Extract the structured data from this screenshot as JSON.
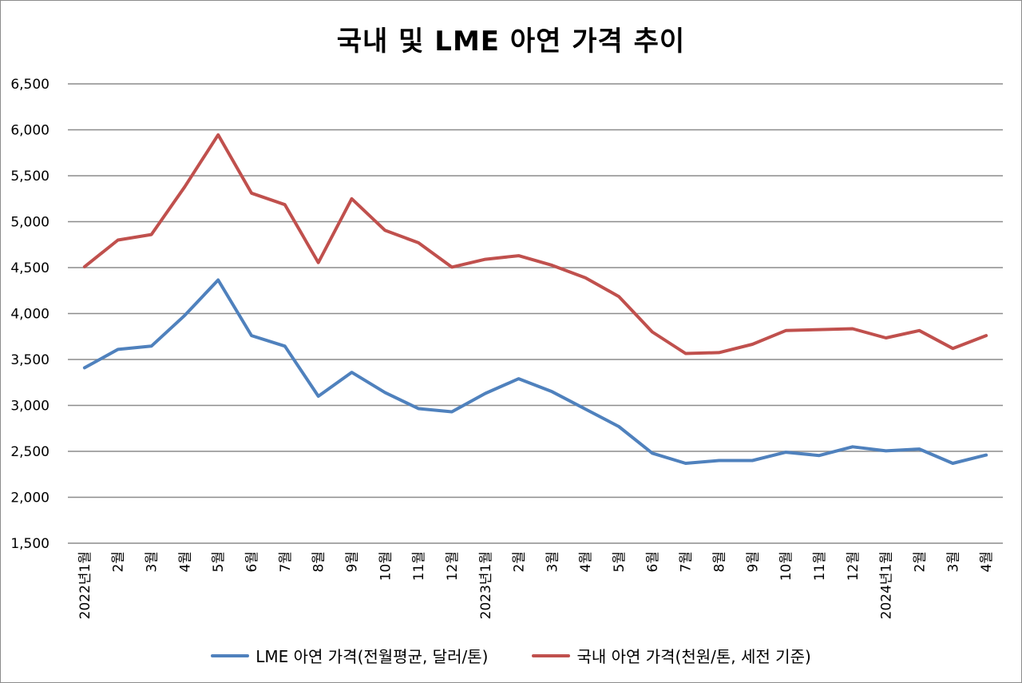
{
  "chart_data": {
    "type": "line",
    "title": "국내 및 LME 아연 가격 추이",
    "xlabel": "",
    "ylabel": "",
    "ylim": [
      1500,
      6500
    ],
    "yticks": [
      "6,500",
      "6,000",
      "5,500",
      "5,000",
      "4,500",
      "4,000",
      "3,500",
      "3,000",
      "2,500",
      "2,000",
      "1,500"
    ],
    "ytick_values": [
      6500,
      6000,
      5500,
      5000,
      4500,
      4000,
      3500,
      3000,
      2500,
      2000,
      1500
    ],
    "grid": true,
    "legend_position": "bottom",
    "categories": [
      "2022년1월",
      "2월",
      "3월",
      "4월",
      "5월",
      "6월",
      "7월",
      "8월",
      "9월",
      "10월",
      "11월",
      "12월",
      "2023년1월",
      "2월",
      "3월",
      "4월",
      "5월",
      "6월",
      "7월",
      "8월",
      "9월",
      "10월",
      "11월",
      "12월",
      "2024년1월",
      "2월",
      "3월",
      "4월"
    ],
    "series": [
      {
        "name": "LME 아연 가격(전월평균, 달러/톤)",
        "color": "#4f81bd",
        "values": [
          3410,
          3610,
          3645,
          3980,
          4365,
          3760,
          3645,
          3100,
          3360,
          3140,
          2965,
          2930,
          3130,
          3290,
          3150,
          2960,
          2770,
          2480,
          2370,
          2400,
          2400,
          2490,
          2455,
          2550,
          2505,
          2525,
          2370,
          2460
        ]
      },
      {
        "name": "국내 아연 가격(천원/톤, 세전 기준)",
        "color": "#c0504d",
        "values": [
          4510,
          4800,
          4860,
          5380,
          5945,
          5310,
          5185,
          4555,
          5250,
          4905,
          4770,
          4505,
          4590,
          4630,
          4525,
          4390,
          4185,
          3800,
          3565,
          3575,
          3665,
          3815,
          3825,
          3835,
          3735,
          3815,
          3620,
          3760
        ]
      }
    ]
  }
}
